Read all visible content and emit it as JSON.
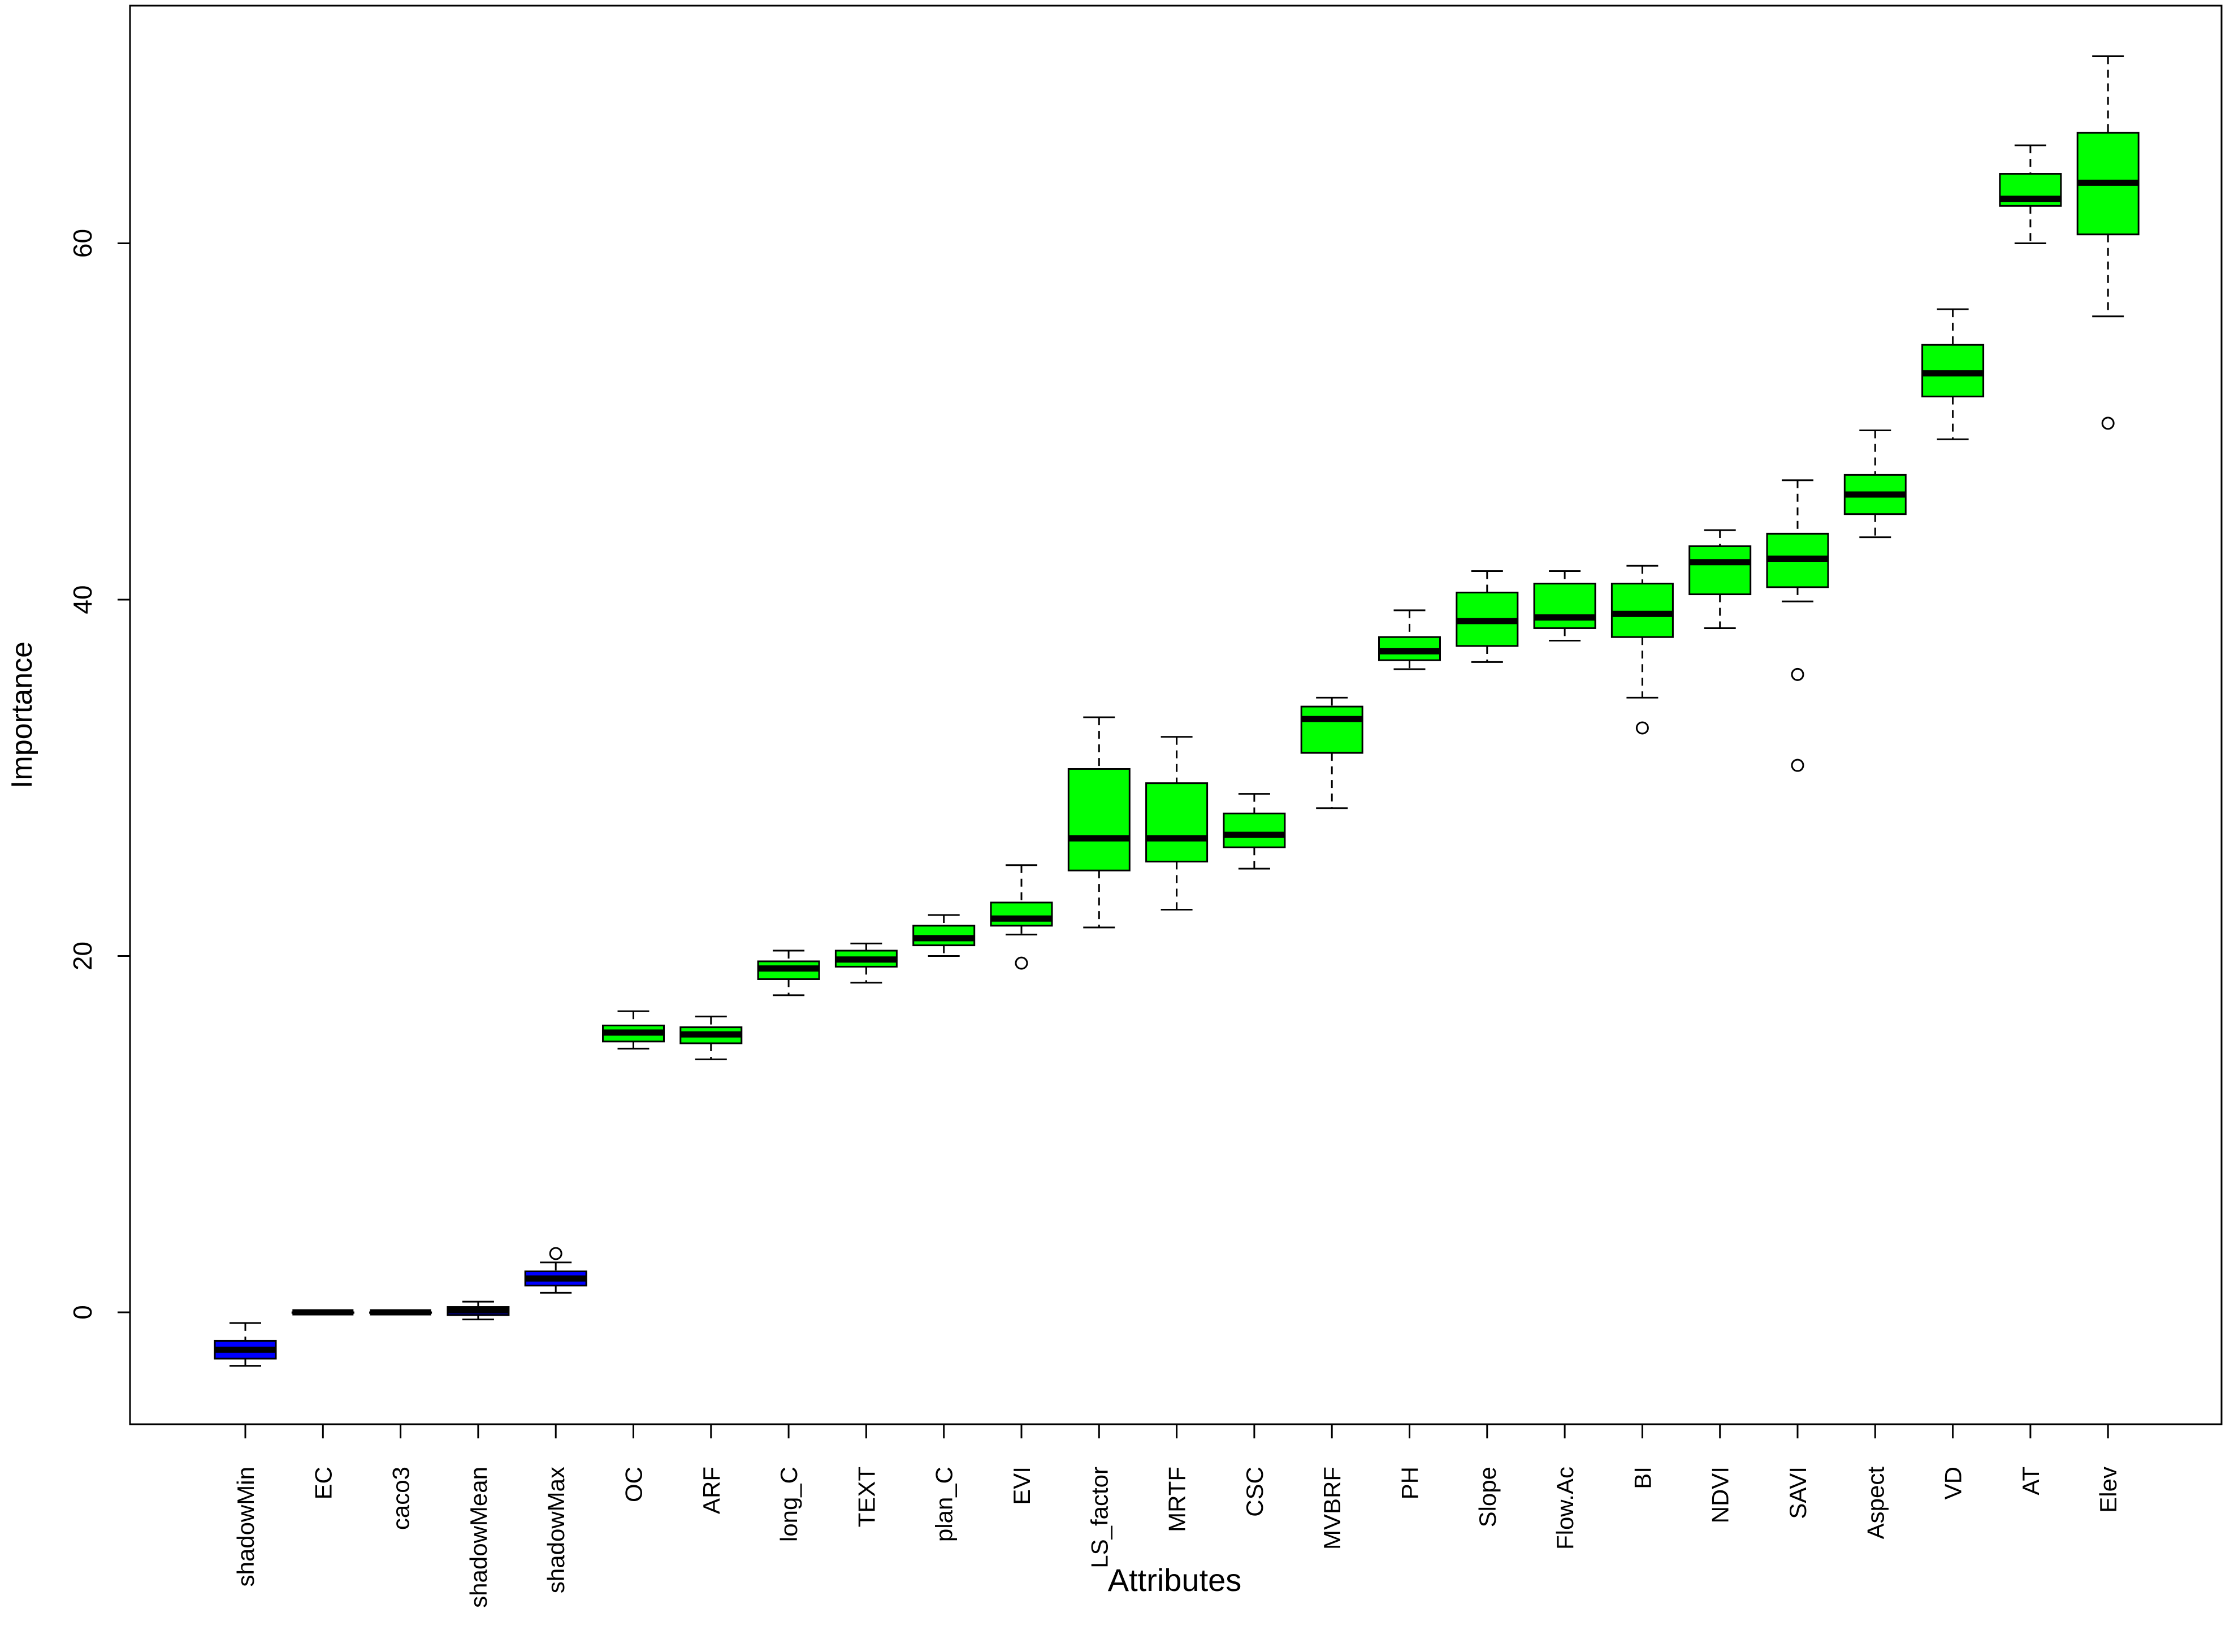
{
  "chart_data": {
    "type": "boxplot",
    "title": "",
    "xlabel": "Attributes",
    "ylabel": "Importance",
    "ylim": [
      -6,
      73.5
    ],
    "yticks": [
      0,
      20,
      40,
      60
    ],
    "grid": false,
    "legend": "none",
    "colors": {
      "green": "#00ff00",
      "blue": "#0000ff",
      "box_border": "#000000"
    },
    "categories": [
      "shadowMin",
      "EC",
      "caco3",
      "shadowMean",
      "shadowMax",
      "OC",
      "ARF",
      "long_C",
      "TEXT",
      "plan_C",
      "EVI",
      "LS_factor",
      "MRTF",
      "CSC",
      "MVBRF",
      "PH",
      "Slope",
      "Flow.Ac",
      "BI",
      "NDVI",
      "SAVI",
      "Aspect",
      "VD",
      "AT",
      "Elev"
    ],
    "boxes": [
      {
        "name": "shadowMin",
        "min": -3.0,
        "q1": -2.6,
        "median": -2.1,
        "q3": -1.6,
        "max": -0.6,
        "outliers": [],
        "color": "#0000ff"
      },
      {
        "name": "EC",
        "min": 0,
        "q1": 0,
        "median": 0,
        "q3": 0,
        "max": 0,
        "outliers": [],
        "color": "#0000ff"
      },
      {
        "name": "caco3",
        "min": 0,
        "q1": 0,
        "median": 0,
        "q3": 0,
        "max": 0,
        "outliers": [],
        "color": "#0000ff"
      },
      {
        "name": "shadowMean",
        "min": -0.4,
        "q1": -0.15,
        "median": 0.1,
        "q3": 0.3,
        "max": 0.6,
        "outliers": [],
        "color": "#0000ff"
      },
      {
        "name": "shadowMax",
        "min": 1.1,
        "q1": 1.5,
        "median": 1.9,
        "q3": 2.3,
        "max": 2.8,
        "outliers": [
          3.3
        ],
        "color": "#0000ff"
      },
      {
        "name": "OC",
        "min": 14.8,
        "q1": 15.2,
        "median": 15.7,
        "q3": 16.1,
        "max": 16.9,
        "outliers": [],
        "color": "#00ff00"
      },
      {
        "name": "ARF",
        "min": 14.2,
        "q1": 15.1,
        "median": 15.6,
        "q3": 16.0,
        "max": 16.6,
        "outliers": [],
        "color": "#00ff00"
      },
      {
        "name": "long_C",
        "min": 17.8,
        "q1": 18.7,
        "median": 19.3,
        "q3": 19.7,
        "max": 20.3,
        "outliers": [],
        "color": "#00ff00"
      },
      {
        "name": "TEXT",
        "min": 18.5,
        "q1": 19.4,
        "median": 19.8,
        "q3": 20.3,
        "max": 20.7,
        "outliers": [],
        "color": "#00ff00"
      },
      {
        "name": "plan_C",
        "min": 20.0,
        "q1": 20.6,
        "median": 21.0,
        "q3": 21.7,
        "max": 22.3,
        "outliers": [],
        "color": "#00ff00"
      },
      {
        "name": "EVI",
        "min": 21.2,
        "q1": 21.7,
        "median": 22.1,
        "q3": 23.0,
        "max": 25.1,
        "outliers": [
          19.6
        ],
        "color": "#00ff00"
      },
      {
        "name": "LS_factor",
        "min": 21.6,
        "q1": 24.8,
        "median": 26.6,
        "q3": 30.5,
        "max": 33.4,
        "outliers": [],
        "color": "#00ff00"
      },
      {
        "name": "MRTF",
        "min": 22.6,
        "q1": 25.3,
        "median": 26.6,
        "q3": 29.7,
        "max": 32.3,
        "outliers": [],
        "color": "#00ff00"
      },
      {
        "name": "CSC",
        "min": 24.9,
        "q1": 26.1,
        "median": 26.8,
        "q3": 28.0,
        "max": 29.1,
        "outliers": [],
        "color": "#00ff00"
      },
      {
        "name": "MVBRF",
        "min": 28.3,
        "q1": 31.4,
        "median": 33.3,
        "q3": 34.0,
        "max": 34.5,
        "outliers": [],
        "color": "#00ff00"
      },
      {
        "name": "PH",
        "min": 36.1,
        "q1": 36.6,
        "median": 37.1,
        "q3": 37.9,
        "max": 39.4,
        "outliers": [],
        "color": "#00ff00"
      },
      {
        "name": "Slope",
        "min": 36.5,
        "q1": 37.4,
        "median": 38.8,
        "q3": 40.4,
        "max": 41.6,
        "outliers": [],
        "color": "#00ff00"
      },
      {
        "name": "Flow.Ac",
        "min": 37.7,
        "q1": 38.4,
        "median": 39.0,
        "q3": 40.9,
        "max": 41.6,
        "outliers": [],
        "color": "#00ff00"
      },
      {
        "name": "BI",
        "min": 34.5,
        "q1": 37.9,
        "median": 39.2,
        "q3": 40.9,
        "max": 41.9,
        "outliers": [
          32.8
        ],
        "color": "#00ff00"
      },
      {
        "name": "NDVI",
        "min": 38.4,
        "q1": 40.3,
        "median": 42.1,
        "q3": 43.0,
        "max": 43.9,
        "outliers": [],
        "color": "#00ff00"
      },
      {
        "name": "SAVI",
        "min": 39.9,
        "q1": 40.7,
        "median": 42.3,
        "q3": 43.7,
        "max": 46.7,
        "outliers": [
          35.8,
          30.7
        ],
        "color": "#00ff00"
      },
      {
        "name": "Aspect",
        "min": 43.5,
        "q1": 44.8,
        "median": 45.9,
        "q3": 47.0,
        "max": 49.5,
        "outliers": [],
        "color": "#00ff00"
      },
      {
        "name": "VD",
        "min": 49.0,
        "q1": 51.4,
        "median": 52.7,
        "q3": 54.3,
        "max": 56.3,
        "outliers": [],
        "color": "#00ff00"
      },
      {
        "name": "AT",
        "min": 60.0,
        "q1": 62.1,
        "median": 62.5,
        "q3": 63.9,
        "max": 65.5,
        "outliers": [],
        "color": "#00ff00"
      },
      {
        "name": "Elev",
        "min": 55.9,
        "q1": 60.5,
        "median": 63.4,
        "q3": 66.2,
        "max": 70.5,
        "outliers": [
          49.9
        ],
        "color": "#00ff00"
      }
    ]
  }
}
